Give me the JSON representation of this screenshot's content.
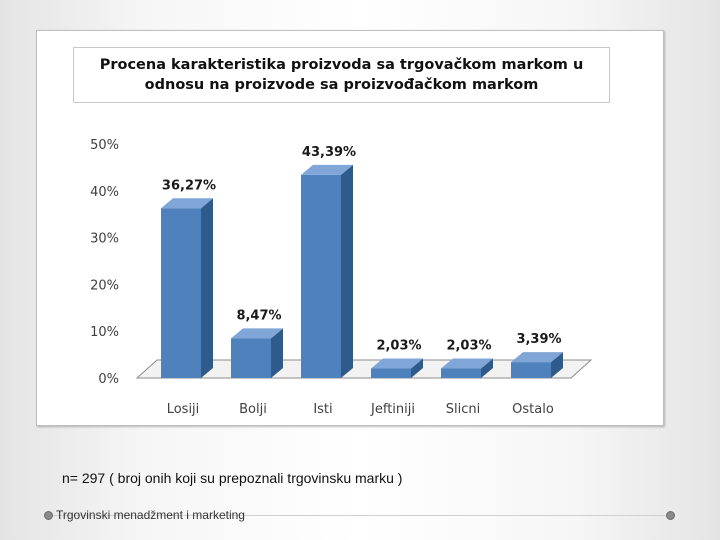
{
  "chart_data": {
    "type": "bar",
    "title": "Procena karakteristika proizvoda sa trgovačkom markom u\nodnosu na proizvode sa proizvođačkom markom",
    "categories": [
      "Losiji",
      "Bolji",
      "Isti",
      "Jeftiniji",
      "Slicni",
      "Ostalo"
    ],
    "values": [
      36.27,
      8.47,
      43.39,
      2.03,
      2.03,
      3.39
    ],
    "data_labels": [
      "36,27%",
      "8,47%",
      "43,39%",
      "2,03%",
      "2,03%",
      "3,39%"
    ],
    "y_ticks": [
      "0%",
      "10%",
      "20%",
      "30%",
      "40%",
      "50%"
    ],
    "ylim": [
      0,
      50
    ],
    "grid": false,
    "style": "3d-column",
    "bar_color": "#4f81bd"
  },
  "caption": "n= 297 ( broj onih koji su prepoznali trgovinsku marku )",
  "footer": "Trgovinski menadžment i marketing"
}
